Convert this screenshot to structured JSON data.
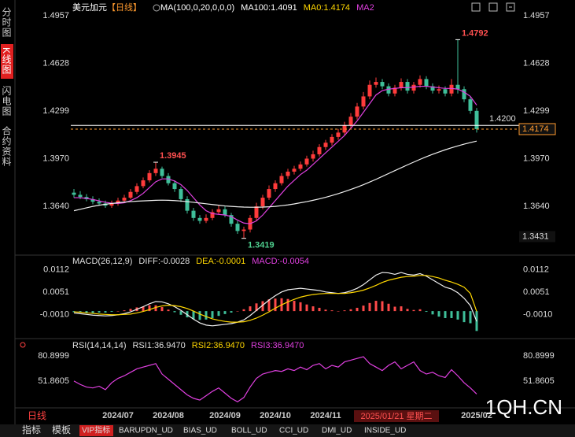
{
  "sidebar": [
    "分时图",
    "K线图",
    "闪电图",
    "合约资料"
  ],
  "tabs": [
    "指标",
    "模板",
    "VIP指标",
    "BARUPDN_UD",
    "BIAS_UD",
    "BOLL_UD",
    "CCI_UD",
    "DMI_UD",
    "INSIDE_UD"
  ],
  "period": "日线",
  "cursor_label": "2025/01/21 星期二",
  "watermark": "1QH.CN",
  "chart_data": [
    {
      "type": "candlestick",
      "symbol": "美元加元",
      "period_tag": "【日线】",
      "indicator": "MA(100,0,20,0,0,0)",
      "legend": [
        {
          "text": "MA100:1.4091",
          "color": "#ffffff"
        },
        {
          "text": "MA0:1.4174",
          "color": "#ffd700"
        },
        {
          "text": "MA2",
          "color": "#e040e0"
        }
      ],
      "categories": [
        null,
        null,
        null,
        null,
        null,
        null,
        null,
        null,
        null,
        null,
        null,
        null,
        null,
        null,
        null,
        null,
        null,
        null,
        null,
        null,
        null,
        null,
        null,
        null,
        null,
        null,
        null,
        null,
        null,
        null,
        null,
        null,
        null,
        null,
        null,
        null,
        null,
        null,
        null,
        null,
        null,
        null,
        null,
        null,
        null,
        null,
        null,
        null,
        null,
        null,
        null,
        null,
        null,
        null,
        null,
        null,
        null,
        null,
        null,
        null,
        null,
        null,
        null,
        null,
        null
      ],
      "open": [
        1.3735,
        1.372,
        1.3705,
        1.369,
        1.3672,
        1.366,
        1.3645,
        1.366,
        1.368,
        1.37,
        1.374,
        1.378,
        1.382,
        1.387,
        1.39,
        1.385,
        1.38,
        1.376,
        1.369,
        1.361,
        1.356,
        1.354,
        1.356,
        1.36,
        1.362,
        1.358,
        1.352,
        1.347,
        1.348,
        1.356,
        1.364,
        1.37,
        1.376,
        1.38,
        1.385,
        1.388,
        1.39,
        1.393,
        1.397,
        1.4,
        1.405,
        1.408,
        1.412,
        1.415,
        1.42,
        1.426,
        1.433,
        1.44,
        1.448,
        1.45,
        1.447,
        1.442,
        1.446,
        1.45,
        1.444,
        1.448,
        1.452,
        1.447,
        1.444,
        1.445,
        1.442,
        1.448,
        1.445,
        1.438,
        1.43
      ],
      "high": [
        1.376,
        1.3745,
        1.3725,
        1.371,
        1.3695,
        1.368,
        1.368,
        1.37,
        1.372,
        1.376,
        1.38,
        1.384,
        1.389,
        1.3945,
        1.3915,
        1.387,
        1.382,
        1.3775,
        1.371,
        1.363,
        1.358,
        1.3585,
        1.362,
        1.365,
        1.364,
        1.3595,
        1.354,
        1.35,
        1.358,
        1.3665,
        1.372,
        1.3785,
        1.382,
        1.387,
        1.39,
        1.392,
        1.395,
        1.399,
        1.4025,
        1.407,
        1.41,
        1.414,
        1.4175,
        1.4225,
        1.4285,
        1.4355,
        1.443,
        1.451,
        1.453,
        1.452,
        1.449,
        1.448,
        1.4525,
        1.452,
        1.45,
        1.4545,
        1.454,
        1.449,
        1.4475,
        1.447,
        1.452,
        1.4792,
        1.447,
        1.44,
        1.432
      ],
      "low": [
        1.37,
        1.369,
        1.3675,
        1.3655,
        1.3645,
        1.363,
        1.363,
        1.3645,
        1.3665,
        1.369,
        1.3725,
        1.3765,
        1.3805,
        1.385,
        1.3835,
        1.3785,
        1.374,
        1.367,
        1.359,
        1.354,
        1.352,
        1.3525,
        1.3545,
        1.3585,
        1.3565,
        1.35,
        1.345,
        1.3419,
        1.346,
        1.354,
        1.362,
        1.3685,
        1.374,
        1.3785,
        1.383,
        1.386,
        1.3885,
        1.3915,
        1.395,
        1.3985,
        1.403,
        1.406,
        1.41,
        1.413,
        1.418,
        1.424,
        1.431,
        1.438,
        1.446,
        1.445,
        1.44,
        1.44,
        1.444,
        1.442,
        1.442,
        1.446,
        1.445,
        1.442,
        1.442,
        1.44,
        1.44,
        1.442,
        1.436,
        1.428,
        1.415
      ],
      "close": [
        1.372,
        1.3705,
        1.369,
        1.3672,
        1.366,
        1.3645,
        1.366,
        1.368,
        1.37,
        1.374,
        1.378,
        1.382,
        1.387,
        1.39,
        1.385,
        1.38,
        1.376,
        1.369,
        1.361,
        1.356,
        1.354,
        1.356,
        1.36,
        1.362,
        1.358,
        1.352,
        1.347,
        1.348,
        1.356,
        1.364,
        1.37,
        1.376,
        1.38,
        1.385,
        1.388,
        1.39,
        1.393,
        1.397,
        1.4,
        1.405,
        1.408,
        1.412,
        1.415,
        1.42,
        1.426,
        1.433,
        1.44,
        1.448,
        1.45,
        1.447,
        1.442,
        1.446,
        1.45,
        1.444,
        1.448,
        1.452,
        1.447,
        1.444,
        1.445,
        1.442,
        1.448,
        1.445,
        1.438,
        1.43,
        1.4174
      ],
      "up_color": "#ff3b3b",
      "down_color": "#3fbf9a",
      "series": [
        {
          "name": "MA2",
          "color": "#e040e0",
          "values": [
            1.37,
            1.37,
            1.3695,
            1.3688,
            1.3678,
            1.3668,
            1.3662,
            1.366,
            1.3665,
            1.368,
            1.37,
            1.373,
            1.377,
            1.381,
            1.383,
            1.383,
            1.3815,
            1.379,
            1.375,
            1.37,
            1.365,
            1.361,
            1.359,
            1.3585,
            1.358,
            1.357,
            1.3545,
            1.3525,
            1.352,
            1.354,
            1.358,
            1.363,
            1.368,
            1.373,
            1.378,
            1.382,
            1.386,
            1.389,
            1.393,
            1.397,
            1.401,
            1.405,
            1.409,
            1.413,
            1.418,
            1.423,
            1.429,
            1.435,
            1.441,
            1.444,
            1.445,
            1.4455,
            1.446,
            1.446,
            1.4465,
            1.447,
            1.447,
            1.4465,
            1.446,
            1.4455,
            1.4455,
            1.445,
            1.443,
            1.44,
            1.434
          ]
        },
        {
          "name": "MA100",
          "color": "#f0f0f0",
          "values": [
            1.361,
            1.362,
            1.363,
            1.364,
            1.3648,
            1.3655,
            1.366,
            1.3665,
            1.367,
            1.3673,
            1.3676,
            1.3678,
            1.368,
            1.3682,
            1.3683,
            1.3682,
            1.368,
            1.3677,
            1.3673,
            1.3668,
            1.3663,
            1.3658,
            1.3653,
            1.3648,
            1.3643,
            1.364,
            1.3637,
            1.3635,
            1.3634,
            1.3634,
            1.3635,
            1.3637,
            1.364,
            1.3645,
            1.365,
            1.3657,
            1.3665,
            1.3673,
            1.3682,
            1.3692,
            1.3703,
            1.3715,
            1.3728,
            1.3742,
            1.3757,
            1.3773,
            1.379,
            1.3808,
            1.3827,
            1.3847,
            1.3867,
            1.3887,
            1.3907,
            1.3927,
            1.3946,
            1.3965,
            1.3983,
            1.4,
            1.4016,
            1.4031,
            1.4045,
            1.4058,
            1.407,
            1.4081,
            1.4091
          ]
        }
      ],
      "level": {
        "value": 1.42,
        "label": "1.4200",
        "color": "#ffffff"
      },
      "last": {
        "value": 1.4174,
        "color": "#ff9a2e"
      },
      "low_label": 1.3431,
      "ylim": [
        1.3325,
        1.5039
      ],
      "yticks": [
        1.4957,
        1.4628,
        1.4299,
        {
          "value": 1.397,
          "label": "1.3970"
        },
        {
          "value": 1.364,
          "label": "1.3640"
        }
      ],
      "xticks": [
        {
          "value": 7,
          "label": "2024/07"
        },
        {
          "value": 15,
          "label": "2024/08"
        },
        {
          "value": 24,
          "label": "2024/09"
        },
        {
          "value": 32,
          "label": "2024/10"
        },
        {
          "value": 40,
          "label": "2024/11"
        },
        {
          "value": 64,
          "label": "2025/02"
        }
      ]
    },
    {
      "type": "macd",
      "legend": [
        {
          "text": "MACD(26,12,9)",
          "color": "#e0e0e0"
        },
        {
          "text": "DIFF:-0.0028",
          "color": "#e0e0e0"
        },
        {
          "text": "DEA:-0.0001",
          "color": "#ffd700"
        },
        {
          "text": "MACD:-0.0054",
          "color": "#e040e0"
        }
      ],
      "series": [
        {
          "name": "DIFF",
          "color": "#f0f0f0",
          "values": [
            -0.0005,
            -0.0007,
            -0.0009,
            -0.0011,
            -0.0012,
            -0.0013,
            -0.0012,
            -0.001,
            -0.0007,
            -0.0002,
            0.0005,
            0.0012,
            0.002,
            0.0026,
            0.0025,
            0.002,
            0.0012,
            0.0002,
            -0.001,
            -0.0022,
            -0.0032,
            -0.0038,
            -0.004,
            -0.0038,
            -0.0036,
            -0.0034,
            -0.003,
            -0.0024,
            -0.0012,
            0.0002,
            0.0016,
            0.003,
            0.0042,
            0.0052,
            0.0058,
            0.006,
            0.0062,
            0.006,
            0.0058,
            0.0056,
            0.0052,
            0.005,
            0.0048,
            0.005,
            0.0055,
            0.0062,
            0.0072,
            0.0085,
            0.0098,
            0.0105,
            0.0104,
            0.01,
            0.0105,
            0.01,
            0.0098,
            0.0102,
            0.0095,
            0.0085,
            0.0075,
            0.0065,
            0.006,
            0.005,
            0.0035,
            0.0015,
            -0.0028
          ]
        },
        {
          "name": "DEA",
          "color": "#ffd700",
          "values": [
            -0.0002,
            -0.0003,
            -0.0005,
            -0.0006,
            -0.0008,
            -0.0009,
            -0.001,
            -0.001,
            -0.0009,
            -0.0008,
            -0.0005,
            -0.0001,
            0.0004,
            0.001,
            0.0014,
            0.0016,
            0.0015,
            0.0012,
            0.0007,
            0.0,
            -0.0008,
            -0.0015,
            -0.0021,
            -0.0025,
            -0.0028,
            -0.003,
            -0.003,
            -0.0029,
            -0.0025,
            -0.0019,
            -0.0011,
            -0.0002,
            0.0008,
            0.0017,
            0.0025,
            0.0032,
            0.0038,
            0.0042,
            0.0045,
            0.0047,
            0.0048,
            0.0048,
            0.0048,
            0.0048,
            0.005,
            0.0053,
            0.0057,
            0.0063,
            0.007,
            0.0078,
            0.0084,
            0.0088,
            0.0092,
            0.0094,
            0.0095,
            0.0097,
            0.0097,
            0.0094,
            0.009,
            0.0084,
            0.0079,
            0.0073,
            0.0065,
            0.0048,
            -0.0001
          ]
        }
      ],
      "histogram": [
        -0.0003,
        -0.0004,
        -0.0004,
        -0.0005,
        -0.0004,
        -0.0004,
        -0.0002,
        0.0,
        0.0002,
        0.0006,
        0.001,
        0.0013,
        0.0016,
        0.0016,
        0.0011,
        0.0004,
        -0.0003,
        -0.001,
        -0.0017,
        -0.0022,
        -0.0024,
        -0.0023,
        -0.0019,
        -0.0013,
        -0.0008,
        -0.0004,
        0.0,
        0.0005,
        0.0013,
        0.0021,
        0.0027,
        0.0032,
        0.0034,
        0.0035,
        0.0033,
        0.0028,
        0.0024,
        0.0018,
        0.0013,
        0.0009,
        0.0004,
        0.0002,
        0.0,
        0.0002,
        0.0005,
        0.0009,
        0.0015,
        0.0022,
        0.0028,
        0.0027,
        0.002,
        0.0012,
        0.0013,
        0.0006,
        0.0003,
        0.0005,
        -0.0002,
        -0.0009,
        -0.0015,
        -0.0019,
        -0.0019,
        -0.0023,
        -0.003,
        -0.0033,
        -0.0054
      ],
      "up_color": "#ff4a4a",
      "down_color": "#3fbf9a",
      "ylim": [
        -0.0064,
        0.0133
      ],
      "yticks": [
        0.0112,
        0.0051,
        {
          "value": -0.001,
          "label": "-0.0010"
        }
      ]
    },
    {
      "type": "rsi",
      "legend": [
        {
          "text": "RSI(14,14,14)",
          "color": "#e0e0e0"
        },
        {
          "text": "RSI1:36.9470",
          "color": "#e0e0e0"
        },
        {
          "text": "RSI2:36.9470",
          "color": "#ffd700"
        },
        {
          "text": "RSI3:36.9470",
          "color": "#e040e0"
        }
      ],
      "series": [
        {
          "name": "RSI",
          "color": "#e040e0",
          "values": [
            52,
            48,
            45,
            44,
            46,
            42,
            50,
            55,
            58,
            62,
            66,
            68,
            70,
            72,
            60,
            54,
            48,
            42,
            36,
            32,
            30,
            35,
            40,
            44,
            38,
            32,
            28,
            33,
            45,
            55,
            60,
            62,
            64,
            63,
            66,
            64,
            68,
            65,
            70,
            72,
            66,
            70,
            68,
            74,
            76,
            78,
            80,
            72,
            68,
            64,
            70,
            74,
            66,
            70,
            74,
            64,
            60,
            62,
            58,
            56,
            65,
            58,
            50,
            44,
            36.947
          ]
        }
      ],
      "ylim": [
        19.19,
        87.25
      ],
      "yticks": [
        80.8999,
        51.8605
      ]
    }
  ]
}
